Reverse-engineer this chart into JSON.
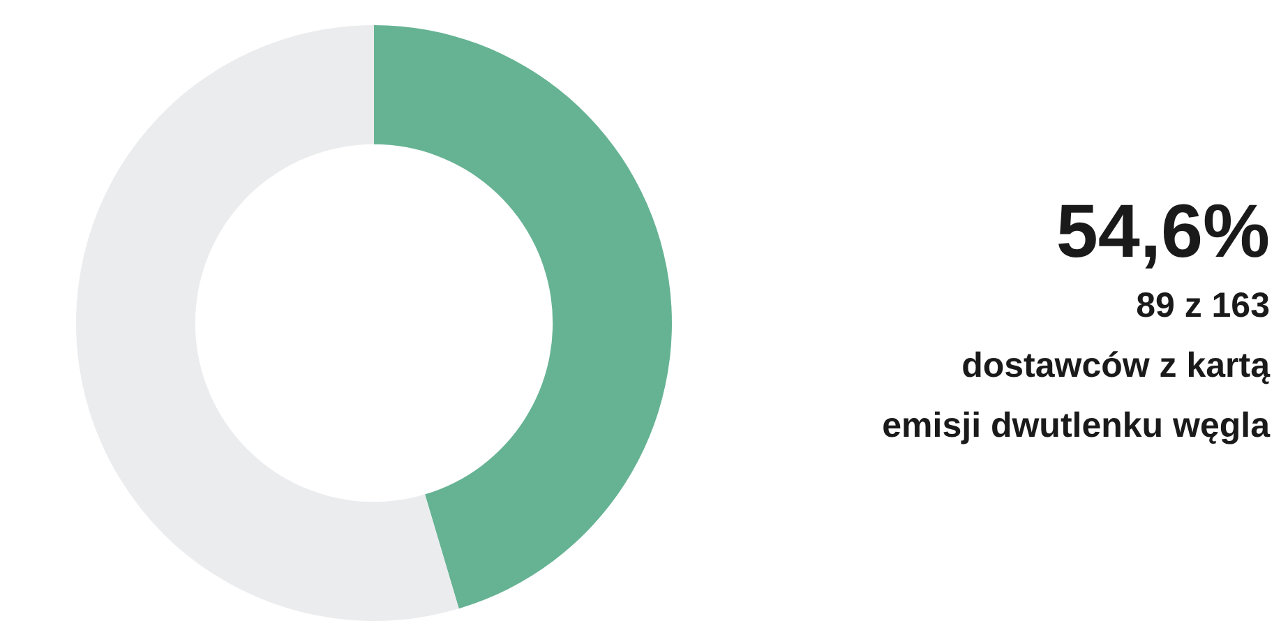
{
  "chart_data": {
    "type": "donut",
    "categories": [
      null,
      null
    ],
    "values": [
      45.4,
      54.6
    ],
    "colors": [
      "#66b394",
      "#ebecee"
    ],
    "annotations": [
      "54,6%",
      "89 z 163",
      "dostawców z kartą",
      "emisji dwutlenku węgla"
    ]
  }
}
